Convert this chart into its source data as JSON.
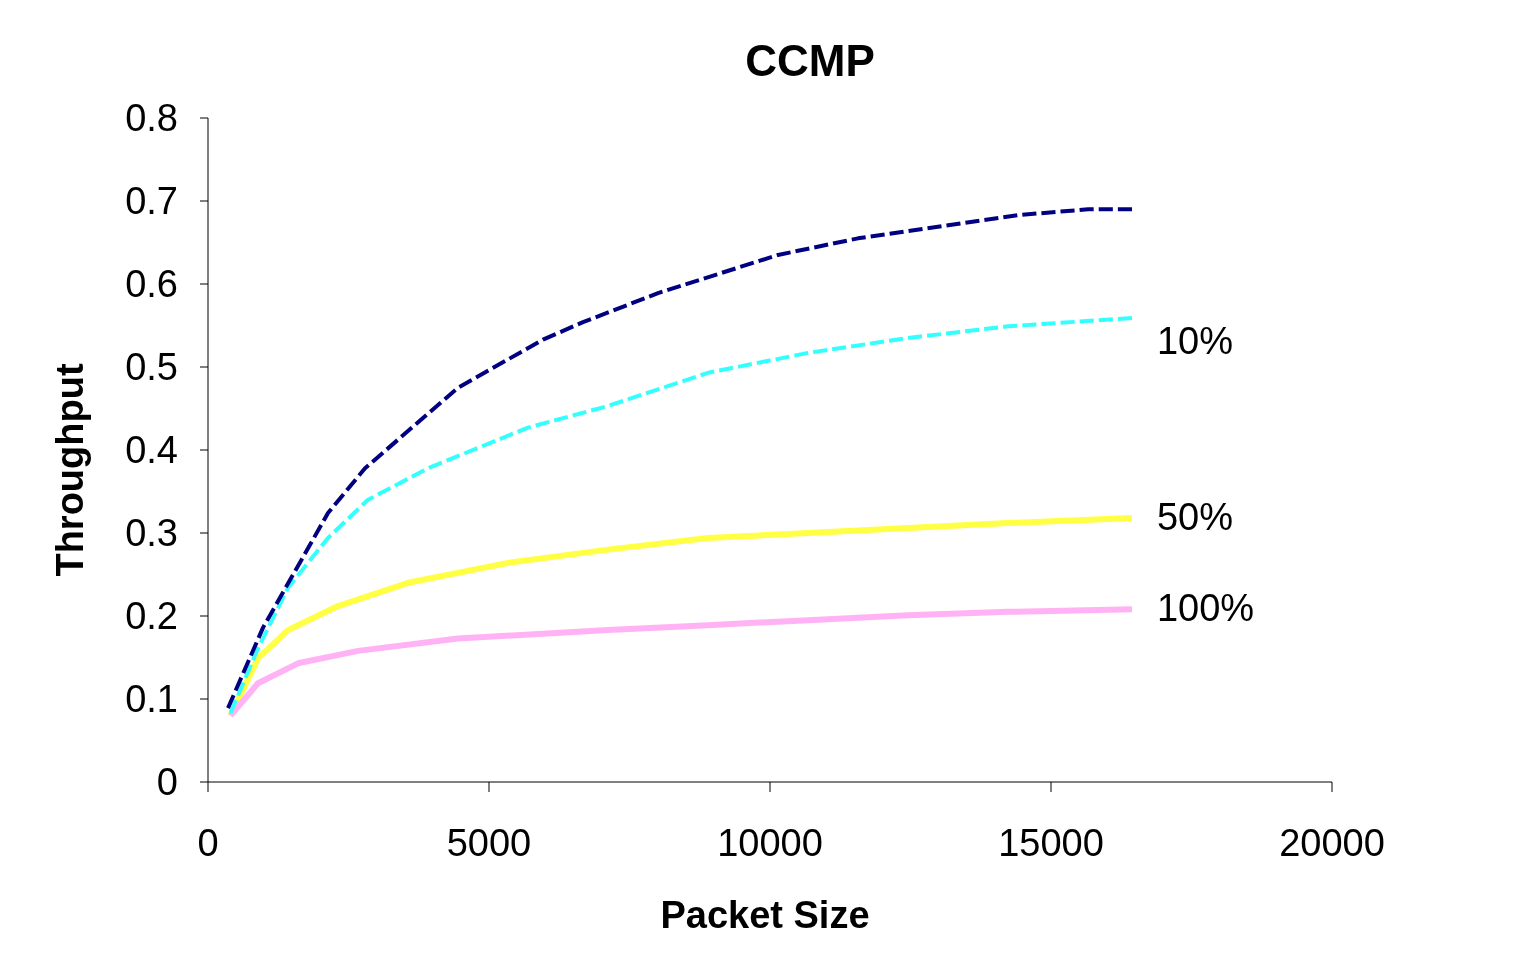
{
  "chart_data": {
    "type": "line",
    "title": "CCMP",
    "xlabel": "Packet Size",
    "ylabel": "Throughput",
    "xlim": [
      0,
      20000
    ],
    "xticks": [
      0,
      5000,
      10000,
      15000,
      20000
    ],
    "ylim": [
      0,
      0.8
    ],
    "yticks": [
      0,
      0.1,
      0.2,
      0.3,
      0.4,
      0.5,
      0.6,
      0.7,
      0.8
    ],
    "grid": false,
    "marker": "none",
    "series": [
      {
        "color": "#000080",
        "line_style": "dashed",
        "x": [
          356,
          979,
          2135,
          2794,
          4448,
          5961,
          6673,
          8007,
          10142,
          11566,
          14413,
          15658,
          16441
        ],
        "values": [
          0.089,
          0.186,
          0.324,
          0.378,
          0.475,
          0.533,
          0.554,
          0.589,
          0.635,
          0.655,
          0.683,
          0.69,
          0.69
        ]
      },
      {
        "name": "10%",
        "color": "#33ffff",
        "line_style": "dashed",
        "x": [
          400,
          890,
          1423,
          2135,
          2847,
          3915,
          5694,
          7117,
          8897,
          10676,
          12456,
          14235,
          16441
        ],
        "values": [
          0.083,
          0.161,
          0.234,
          0.294,
          0.34,
          0.378,
          0.427,
          0.453,
          0.493,
          0.517,
          0.535,
          0.549,
          0.559
        ]
      },
      {
        "name": "50%",
        "color": "#ffff44",
        "line_style": "solid",
        "x": [
          400,
          890,
          1423,
          2313,
          3559,
          5338,
          7117,
          8897,
          10676,
          12456,
          14235,
          16441
        ],
        "values": [
          0.08,
          0.149,
          0.183,
          0.212,
          0.24,
          0.264,
          0.28,
          0.294,
          0.3,
          0.306,
          0.312,
          0.318
        ]
      },
      {
        "name": "100%",
        "color": "#ffb3f5",
        "line_style": "solid",
        "x": [
          400,
          890,
          1601,
          2669,
          4448,
          7117,
          8897,
          10676,
          12456,
          14235,
          16441
        ],
        "values": [
          0.08,
          0.119,
          0.143,
          0.158,
          0.173,
          0.183,
          0.189,
          0.195,
          0.201,
          0.205,
          0.208
        ]
      }
    ]
  }
}
